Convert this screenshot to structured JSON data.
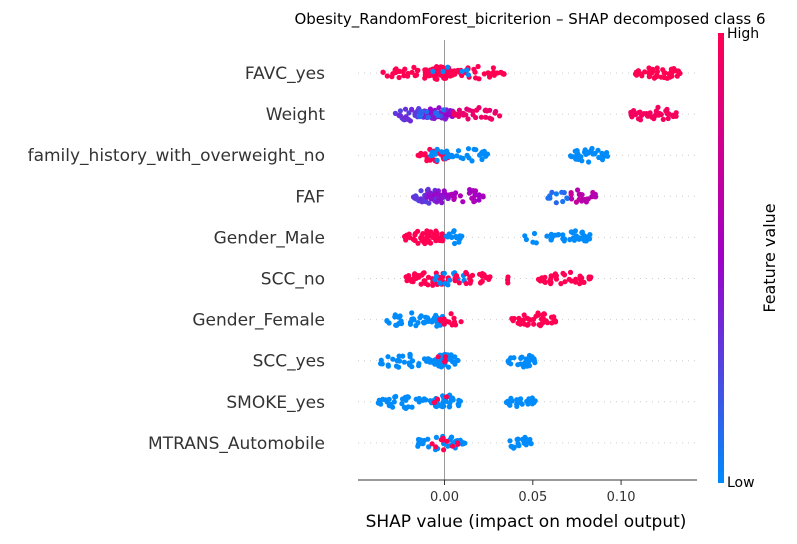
{
  "chart_data": {
    "type": "scatter",
    "subtype": "shap-beeswarm",
    "title": "Obesity_RandomForest_bicriterion – SHAP decomposed class 6",
    "xlabel": "SHAP value (impact on model output)",
    "ylabel": "",
    "xlim": [
      -0.049,
      0.143
    ],
    "x_ticks": [
      {
        "value": 0.0,
        "label": "0.00"
      },
      {
        "value": 0.05,
        "label": "0.05"
      },
      {
        "value": 0.1,
        "label": "0.10"
      }
    ],
    "colorbar": {
      "label": "Feature value",
      "high_label": "High",
      "low_label": "Low",
      "low_color": "#008bfb",
      "mid_color": "#a000c8",
      "high_color": "#ff0052"
    },
    "zero_line": true,
    "features": [
      {
        "name": "FAVC_yes",
        "clusters": [
          {
            "x0": -0.035,
            "x1": -0.005,
            "count": 40,
            "color": 1.0
          },
          {
            "x0": -0.01,
            "x1": 0.006,
            "count": 55,
            "color": 1.0
          },
          {
            "x0": 0.006,
            "x1": 0.034,
            "count": 35,
            "color": 1.0
          },
          {
            "x0": -0.008,
            "x1": 0.015,
            "count": 6,
            "color": 0.0
          },
          {
            "x0": 0.108,
            "x1": 0.134,
            "count": 45,
            "color": 1.0
          }
        ]
      },
      {
        "name": "Weight",
        "clusters": [
          {
            "x0": -0.028,
            "x1": -0.01,
            "count": 30,
            "color": 0.3
          },
          {
            "x0": -0.012,
            "x1": 0.006,
            "count": 45,
            "color": 0.45
          },
          {
            "x0": 0.005,
            "x1": 0.033,
            "count": 30,
            "color": 0.9
          },
          {
            "x0": -0.015,
            "x1": 0.002,
            "count": 12,
            "color": 0.15
          },
          {
            "x0": 0.104,
            "x1": 0.132,
            "count": 40,
            "color": 0.95
          }
        ]
      },
      {
        "name": "family_history_with_overweight_no",
        "clusters": [
          {
            "x0": -0.015,
            "x1": 0.003,
            "count": 40,
            "color": 1.0
          },
          {
            "x0": -0.008,
            "x1": 0.004,
            "count": 15,
            "color": 0.0
          },
          {
            "x0": 0.004,
            "x1": 0.025,
            "count": 20,
            "color": 0.0
          },
          {
            "x0": 0.071,
            "x1": 0.093,
            "count": 35,
            "color": 0.0
          }
        ]
      },
      {
        "name": "FAF",
        "clusters": [
          {
            "x0": -0.018,
            "x1": 0.0,
            "count": 35,
            "color": 0.3
          },
          {
            "x0": -0.01,
            "x1": 0.005,
            "count": 30,
            "color": 0.45
          },
          {
            "x0": 0.003,
            "x1": 0.022,
            "count": 25,
            "color": 0.55
          },
          {
            "x0": 0.058,
            "x1": 0.07,
            "count": 12,
            "color": 0.1
          },
          {
            "x0": 0.07,
            "x1": 0.086,
            "count": 22,
            "color": 0.65
          }
        ]
      },
      {
        "name": "Gender_Male",
        "clusters": [
          {
            "x0": -0.023,
            "x1": -0.002,
            "count": 35,
            "color": 1.0
          },
          {
            "x0": -0.01,
            "x1": 0.0,
            "count": 18,
            "color": 1.0
          },
          {
            "x0": 0.0,
            "x1": 0.01,
            "count": 16,
            "color": 0.0
          },
          {
            "x0": 0.045,
            "x1": 0.056,
            "count": 5,
            "color": 0.0
          },
          {
            "x0": 0.058,
            "x1": 0.085,
            "count": 35,
            "color": 0.0
          }
        ]
      },
      {
        "name": "SCC_no",
        "clusters": [
          {
            "x0": -0.022,
            "x1": 0.006,
            "count": 45,
            "color": 1.0
          },
          {
            "x0": -0.006,
            "x1": 0.012,
            "count": 15,
            "color": 0.0
          },
          {
            "x0": 0.005,
            "x1": 0.026,
            "count": 25,
            "color": 1.0
          },
          {
            "x0": 0.033,
            "x1": 0.037,
            "count": 3,
            "color": 1.0
          },
          {
            "x0": 0.053,
            "x1": 0.083,
            "count": 40,
            "color": 1.0
          }
        ]
      },
      {
        "name": "Gender_Female",
        "clusters": [
          {
            "x0": -0.035,
            "x1": -0.008,
            "count": 30,
            "color": 0.0
          },
          {
            "x0": -0.008,
            "x1": 0.0,
            "count": 22,
            "color": 0.0
          },
          {
            "x0": -0.004,
            "x1": 0.01,
            "count": 12,
            "color": 1.0
          },
          {
            "x0": 0.038,
            "x1": 0.064,
            "count": 38,
            "color": 1.0
          }
        ]
      },
      {
        "name": "SCC_yes",
        "clusters": [
          {
            "x0": -0.04,
            "x1": -0.008,
            "count": 32,
            "color": 0.0
          },
          {
            "x0": -0.008,
            "x1": 0.008,
            "count": 40,
            "color": 0.0
          },
          {
            "x0": -0.006,
            "x1": 0.002,
            "count": 5,
            "color": 1.0
          },
          {
            "x0": 0.036,
            "x1": 0.052,
            "count": 28,
            "color": 0.0
          }
        ]
      },
      {
        "name": "SMOKE_yes",
        "clusters": [
          {
            "x0": -0.038,
            "x1": -0.008,
            "count": 32,
            "color": 0.0
          },
          {
            "x0": -0.008,
            "x1": 0.01,
            "count": 40,
            "color": 0.0
          },
          {
            "x0": -0.006,
            "x1": 0.004,
            "count": 3,
            "color": 1.0
          },
          {
            "x0": 0.035,
            "x1": 0.052,
            "count": 25,
            "color": 0.0
          }
        ]
      },
      {
        "name": "MTRANS_Automobile",
        "clusters": [
          {
            "x0": -0.018,
            "x1": 0.012,
            "count": 35,
            "color": 0.0
          },
          {
            "x0": -0.01,
            "x1": 0.008,
            "count": 10,
            "color": 1.0
          },
          {
            "x0": 0.036,
            "x1": 0.05,
            "count": 22,
            "color": 0.0
          }
        ]
      }
    ]
  }
}
